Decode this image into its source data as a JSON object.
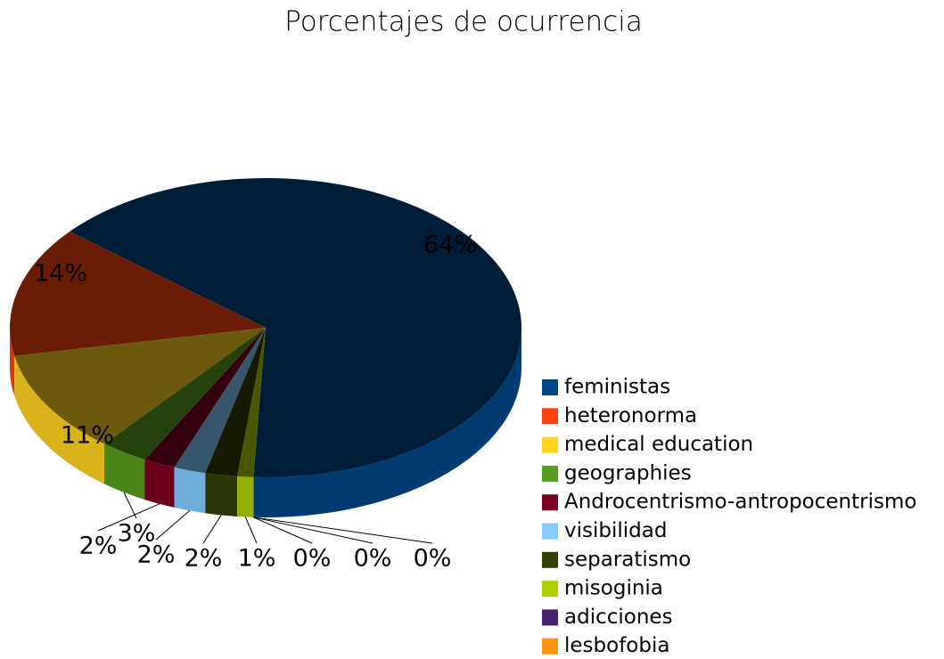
{
  "chart_data": {
    "type": "pie",
    "title": "Porcentajes de ocurrencia",
    "categories": [
      "feministas",
      "heteronorma",
      "medical education",
      "geographies",
      "Androcentrismo-antropocentrismo",
      "visibilidad",
      "separatismo",
      "misoginia",
      "adicciones",
      "lesbofobia",
      null
    ],
    "values": [
      64,
      14,
      11,
      3,
      2,
      2,
      2,
      1,
      0,
      0,
      0
    ],
    "value_labels": [
      "64%",
      "14%",
      "11%",
      "3%",
      "2%",
      "2%",
      "2%",
      "1%",
      "0%",
      "0%",
      "0%"
    ],
    "colors": [
      "#004586",
      "#ff420e",
      "#ffd320",
      "#579d1c",
      "#7e0021",
      "#83caff",
      "#314004",
      "#aecf00",
      "#4b1f6f",
      "#ff950e",
      "#c5000b"
    ],
    "legend": "right"
  }
}
